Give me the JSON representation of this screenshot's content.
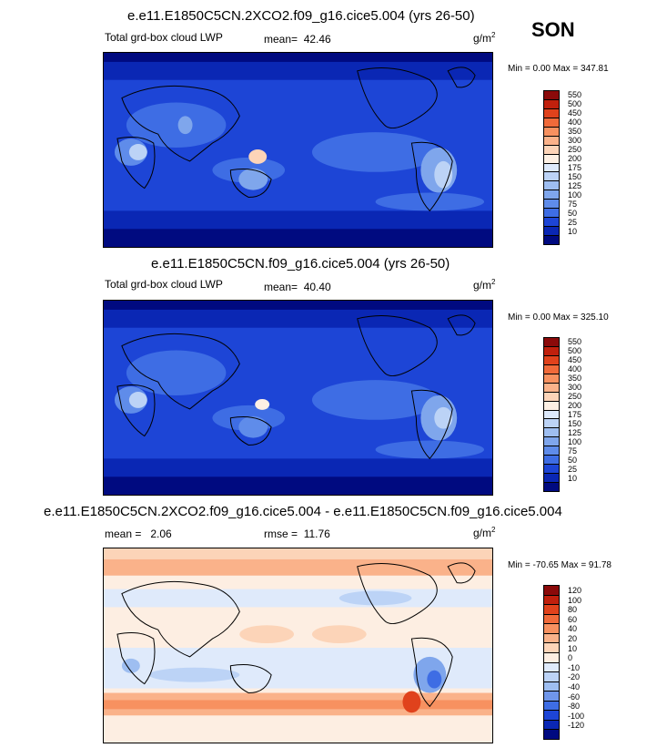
{
  "season": "SON",
  "units_base": "g/m",
  "units_exp": "2",
  "panels": [
    {
      "title": "e.e11.E1850C5CN.2XCO2.f09_g16.cice5.004 (yrs 26-50)",
      "left_label": "Total grd-box cloud LWP",
      "stat_label": "mean=",
      "stat_value": "42.46",
      "minmax": "Min =   0.00 Max = 347.81",
      "ticks": [
        "550",
        "500",
        "450",
        "400",
        "350",
        "300",
        "250",
        "200",
        "175",
        "150",
        "125",
        "100",
        "75",
        "50",
        "25",
        "10"
      ],
      "colors": [
        "#8b0a0a",
        "#c0200d",
        "#e0421c",
        "#f06a3a",
        "#f79160",
        "#fab28a",
        "#fcd4b8",
        "#fdf0e4",
        "#dde9fb",
        "#bcd3f6",
        "#9ebef1",
        "#7fa6ec",
        "#5f8cea",
        "#3e6de4",
        "#1d45d6",
        "#0a27b4",
        "#000a80"
      ]
    },
    {
      "title": "e.e11.E1850C5CN.f09_g16.cice5.004 (yrs 26-50)",
      "left_label": "Total grd-box cloud LWP",
      "stat_label": "mean=",
      "stat_value": "40.40",
      "minmax": "Min =   0.00 Max = 325.10",
      "ticks": [
        "550",
        "500",
        "450",
        "400",
        "350",
        "300",
        "250",
        "200",
        "175",
        "150",
        "125",
        "100",
        "75",
        "50",
        "25",
        "10"
      ],
      "colors": [
        "#8b0a0a",
        "#c0200d",
        "#e0421c",
        "#f06a3a",
        "#f79160",
        "#fab28a",
        "#fcd4b8",
        "#fdf0e4",
        "#dde9fb",
        "#bcd3f6",
        "#9ebef1",
        "#7fa6ec",
        "#5f8cea",
        "#3e6de4",
        "#1d45d6",
        "#0a27b4",
        "#000a80"
      ]
    },
    {
      "title": "e.e11.E1850C5CN.2XCO2.f09_g16.cice5.004 - e.e11.E1850C5CN.f09_g16.cice5.004",
      "left_label": "mean =",
      "left_value": "2.06",
      "stat_label": "rmse =",
      "stat_value": "11.76",
      "minmax": "Min = -70.65 Max =  91.78",
      "ticks": [
        "120",
        "100",
        "80",
        "60",
        "40",
        "20",
        "10",
        "0",
        "-10",
        "-20",
        "-40",
        "-60",
        "-80",
        "-100",
        "-120"
      ],
      "colors": [
        "#8b0a0a",
        "#c0200d",
        "#e0421c",
        "#f06a3a",
        "#f79160",
        "#fab28a",
        "#fcd4b8",
        "#fdeee2",
        "#dfeafb",
        "#bcd3f6",
        "#9ebef1",
        "#6f96ea",
        "#3e6de4",
        "#1d45d6",
        "#0a27b4",
        "#000a80"
      ]
    }
  ]
}
